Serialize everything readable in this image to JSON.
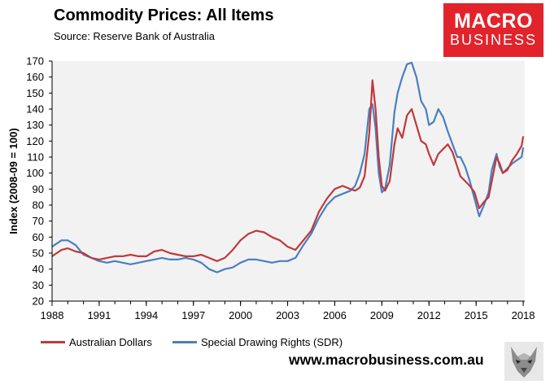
{
  "title": "Commodity Prices: All Items",
  "source": "Source: Reserve Bank of Australia",
  "logo": {
    "line1": "MACRO",
    "line2": "BUSINESS"
  },
  "website": "www.macrobusiness.com.au",
  "colors": {
    "aud": "#c0393b",
    "sdr": "#4a7fc1",
    "plot_bg": "#f2f2f2",
    "brand": "#e2232b"
  },
  "chart_data": {
    "type": "line",
    "title": "Commodity Prices: All Items",
    "xlabel": "",
    "ylabel": "Index (2008-09 = 100)",
    "xlim": [
      1988,
      2018.1
    ],
    "ylim": [
      20,
      170
    ],
    "yticks": [
      20,
      30,
      40,
      50,
      60,
      70,
      80,
      90,
      100,
      110,
      120,
      130,
      140,
      150,
      160,
      170
    ],
    "xticks": [
      1988,
      1991,
      1994,
      1997,
      2000,
      2003,
      2006,
      2009,
      2012,
      2015,
      2018
    ],
    "grid": false,
    "legend_position": "bottom",
    "series": [
      {
        "name": "Australian Dollars",
        "x": [
          1988,
          1988.3,
          1988.6,
          1989,
          1989.5,
          1990,
          1990.5,
          1991,
          1991.5,
          1992,
          1992.5,
          1993,
          1993.5,
          1994,
          1994.5,
          1995,
          1995.5,
          1996,
          1996.5,
          1997,
          1997.5,
          1998,
          1998.5,
          1999,
          1999.5,
          2000,
          2000.5,
          2001,
          2001.5,
          2002,
          2002.5,
          2003,
          2003.5,
          2004,
          2004.5,
          2005,
          2005.5,
          2006,
          2006.5,
          2007,
          2007.3,
          2007.6,
          2007.9,
          2008.2,
          2008.4,
          2008.6,
          2008.8,
          2009,
          2009.2,
          2009.5,
          2009.8,
          2010,
          2010.3,
          2010.6,
          2010.9,
          2011.2,
          2011.5,
          2011.8,
          2012,
          2012.3,
          2012.6,
          2012.9,
          2013.2,
          2013.5,
          2013.8,
          2014,
          2014.3,
          2014.6,
          2014.9,
          2015.2,
          2015.5,
          2015.8,
          2016,
          2016.3,
          2016.5,
          2016.7,
          2017,
          2017.3,
          2017.6,
          2017.9,
          2018
        ],
        "values": [
          48,
          50,
          52,
          53,
          51,
          50,
          47,
          46,
          47,
          48,
          48,
          49,
          48,
          48,
          51,
          52,
          50,
          49,
          48,
          48,
          49,
          47,
          45,
          47,
          52,
          58,
          62,
          64,
          63,
          60,
          58,
          54,
          52,
          58,
          64,
          76,
          84,
          90,
          92,
          90,
          89,
          91,
          98,
          125,
          158,
          140,
          110,
          92,
          89,
          95,
          118,
          128,
          122,
          136,
          140,
          130,
          120,
          118,
          112,
          105,
          112,
          115,
          118,
          113,
          104,
          98,
          95,
          92,
          88,
          78,
          82,
          85,
          95,
          110,
          106,
          100,
          102,
          108,
          112,
          117,
          123
        ]
      },
      {
        "name": "Special Drawing Rights (SDR)",
        "x": [
          1988,
          1988.3,
          1988.6,
          1989,
          1989.5,
          1990,
          1990.5,
          1991,
          1991.5,
          1992,
          1992.5,
          1993,
          1993.5,
          1994,
          1994.5,
          1995,
          1995.5,
          1996,
          1996.5,
          1997,
          1997.5,
          1998,
          1998.5,
          1999,
          1999.5,
          2000,
          2000.5,
          2001,
          2001.5,
          2002,
          2002.5,
          2003,
          2003.5,
          2004,
          2004.5,
          2005,
          2005.5,
          2006,
          2006.5,
          2007,
          2007.3,
          2007.6,
          2007.9,
          2008.2,
          2008.4,
          2008.6,
          2008.8,
          2009,
          2009.2,
          2009.5,
          2009.8,
          2010,
          2010.3,
          2010.6,
          2010.9,
          2011.2,
          2011.5,
          2011.8,
          2012,
          2012.3,
          2012.6,
          2012.9,
          2013.2,
          2013.5,
          2013.8,
          2014,
          2014.3,
          2014.6,
          2014.9,
          2015.2,
          2015.5,
          2015.8,
          2016,
          2016.3,
          2016.5,
          2016.7,
          2017,
          2017.3,
          2017.6,
          2017.9,
          2018
        ],
        "values": [
          54,
          56,
          58,
          58,
          55,
          49,
          47,
          45,
          44,
          45,
          44,
          43,
          44,
          45,
          46,
          47,
          46,
          46,
          47,
          46,
          44,
          40,
          38,
          40,
          41,
          44,
          46,
          46,
          45,
          44,
          45,
          45,
          47,
          55,
          62,
          72,
          80,
          85,
          87,
          89,
          92,
          100,
          112,
          140,
          143,
          128,
          100,
          88,
          90,
          105,
          138,
          150,
          160,
          168,
          169,
          160,
          145,
          140,
          130,
          132,
          140,
          135,
          126,
          118,
          110,
          110,
          104,
          95,
          84,
          73,
          80,
          88,
          102,
          112,
          104,
          100,
          103,
          106,
          108,
          110,
          116
        ]
      }
    ]
  }
}
